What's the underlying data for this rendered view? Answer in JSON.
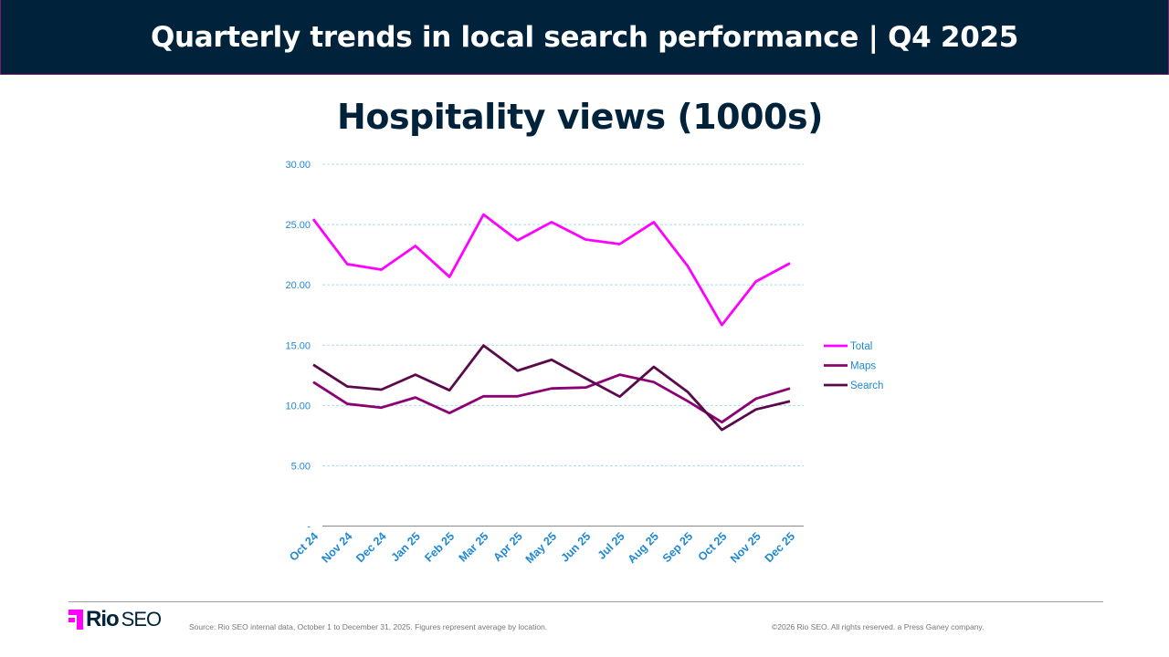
{
  "header": {
    "title": "Quarterly trends in local search performance  |  Q4 2025"
  },
  "footer": {
    "logo_text": "Rio SEO",
    "source": "Source: Rio SEO internal data, October 1 to December 31, 2025. Figures represent average by location.",
    "copyright": "©2026 Rio SEO. All rights reserved. a Press Ganey company."
  },
  "chart_data": {
    "type": "line",
    "title": "Hospitality views (1000s)",
    "xlabel": "",
    "ylabel": "",
    "categories": [
      "Oct 24",
      "Nov 24",
      "Dec 24",
      "Jan 25",
      "Feb 25",
      "Mar 25",
      "Apr 25",
      "May 25",
      "Jun 25",
      "Jul 25",
      "Aug 25",
      "Sep 25",
      "Oct 25",
      "Nov 25",
      "Dec 25"
    ],
    "ylim": [
      0,
      30
    ],
    "yticks": [
      "-",
      "5.00",
      "10.00",
      "15.00",
      "20.00",
      "25.00",
      "30.00"
    ],
    "grid": true,
    "legend_position": "right",
    "series": [
      {
        "name": "Total",
        "color": "#ff00ff",
        "values": [
          25.45,
          21.72,
          21.26,
          23.23,
          20.66,
          25.83,
          23.69,
          25.2,
          23.76,
          23.38,
          25.2,
          21.54,
          16.67,
          20.28,
          21.79
        ]
      },
      {
        "name": "Maps",
        "color": "#8b0073",
        "values": [
          11.94,
          10.13,
          9.82,
          10.66,
          9.37,
          10.76,
          10.76,
          11.41,
          11.49,
          12.55,
          11.94,
          10.35,
          8.61,
          10.56,
          11.41
        ]
      },
      {
        "name": "Search",
        "color": "#5a0a4a",
        "values": [
          13.38,
          11.57,
          11.31,
          12.55,
          11.26,
          14.97,
          12.88,
          13.79,
          12.25,
          10.73,
          13.2,
          11.11,
          7.98,
          9.67,
          10.35
        ]
      }
    ]
  }
}
